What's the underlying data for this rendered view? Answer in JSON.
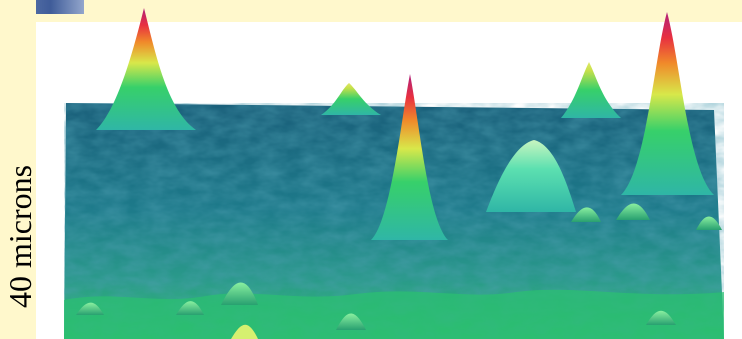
{
  "scale_label": "40 microns",
  "surface_colors": {
    "low": "#1f6f86",
    "mid": "#2fb6a6",
    "green": "#37d06a",
    "yellow": "#d8e84a",
    "orange": "#f08a2a",
    "red": "#e83040",
    "peak": "#b0207a"
  }
}
